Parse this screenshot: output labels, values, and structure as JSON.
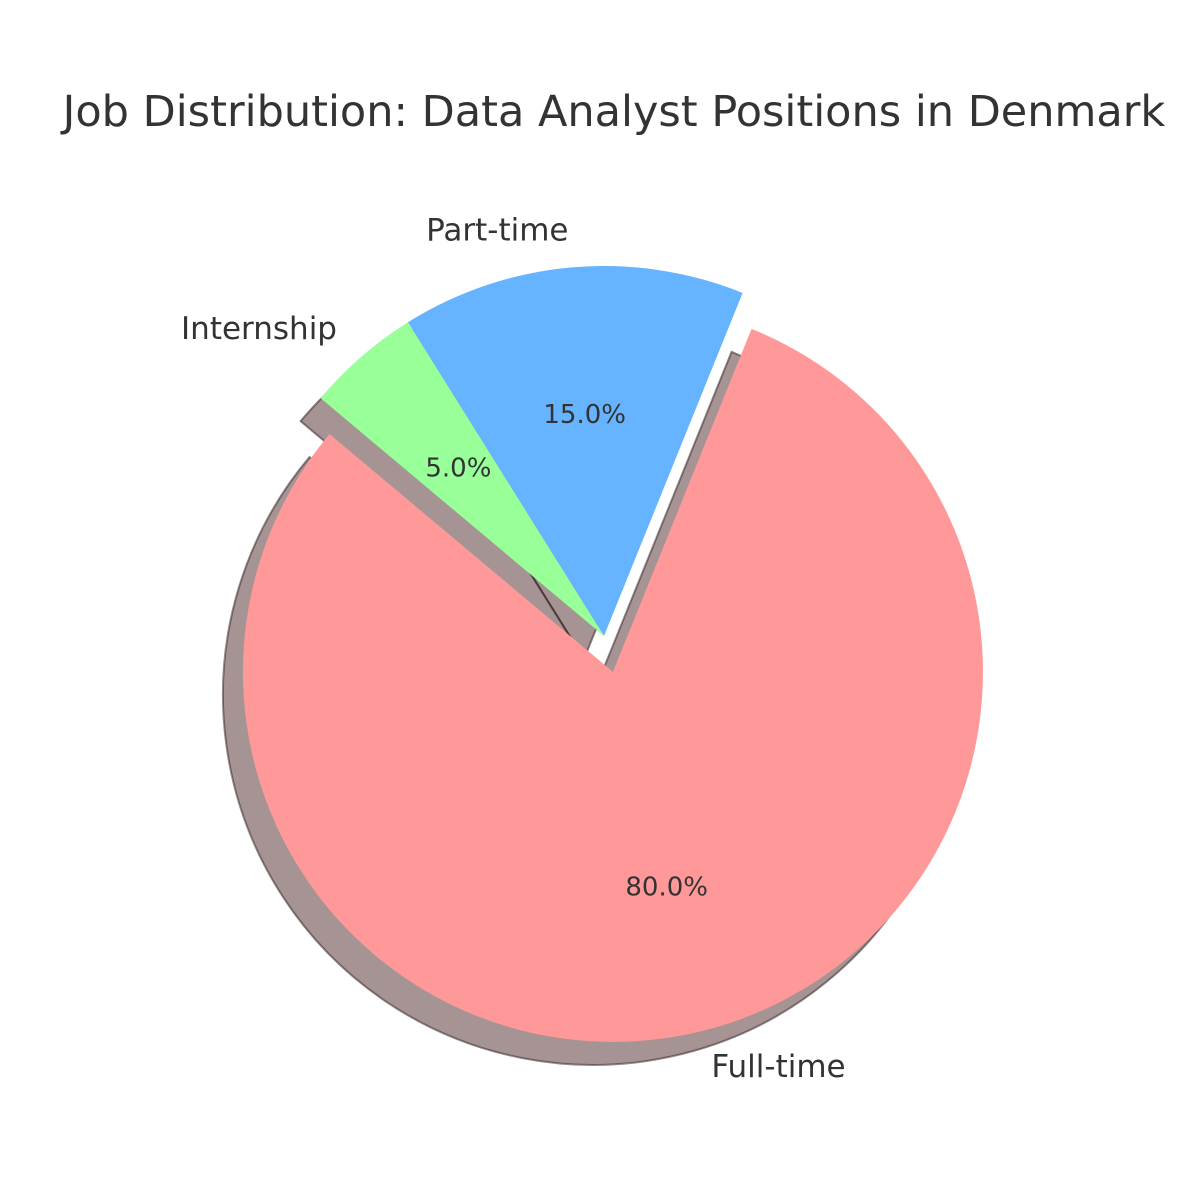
{
  "chart_data": {
    "type": "pie",
    "title": "Job Distribution: Data Analyst Positions in Denmark",
    "start_angle_deg": 140,
    "counterclock": true,
    "shadow": true,
    "slices": [
      {
        "label": "Full-time",
        "value": 80,
        "pct_label": "80.0%",
        "color": "#ff9999",
        "exploded": true
      },
      {
        "label": "Part-time",
        "value": 15,
        "pct_label": "15.0%",
        "color": "#66b3ff",
        "exploded": false
      },
      {
        "label": "Internship",
        "value": 5,
        "pct_label": "5.0%",
        "color": "#99ff99",
        "exploded": false
      }
    ]
  }
}
